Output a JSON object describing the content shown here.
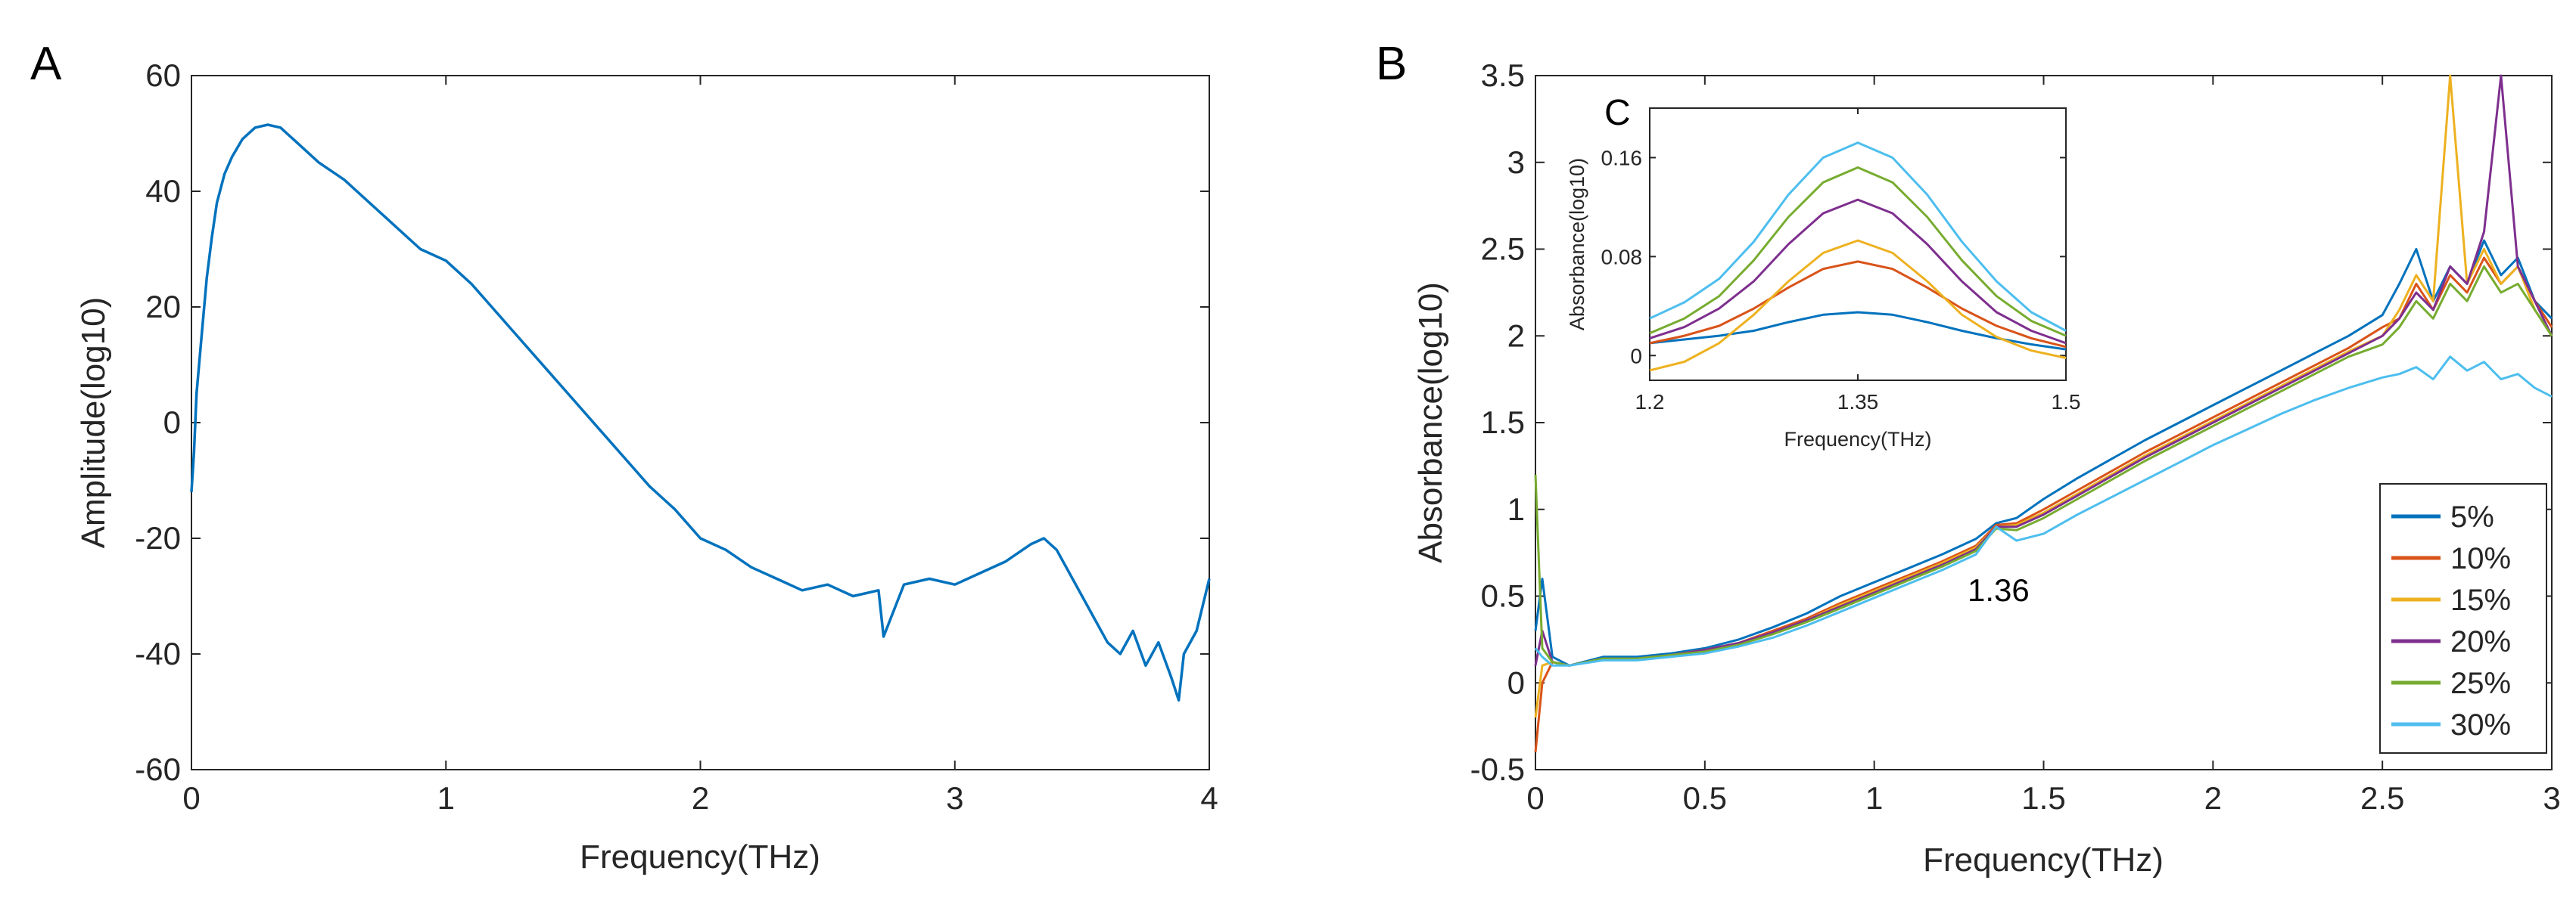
{
  "colors": {
    "s5": "#0072BD",
    "s10": "#D95319",
    "s15": "#EDB120",
    "s20": "#7E2F8E",
    "s25": "#77AC30",
    "s30": "#4DBEEE",
    "axis": "#262626"
  },
  "chart_data": [
    {
      "panel": "A",
      "type": "line",
      "title": "",
      "xlabel": "Frequency(THz)",
      "ylabel": "Amplitude(log10)",
      "xlim": [
        0,
        4
      ],
      "ylim": [
        -60,
        60
      ],
      "xticks": [
        0,
        1,
        2,
        3,
        4
      ],
      "xtick_labels": [
        "0",
        "1",
        "2",
        "3",
        "4"
      ],
      "yticks": [
        -60,
        -40,
        -20,
        0,
        20,
        40,
        60
      ],
      "ytick_labels": [
        "-60",
        "-40",
        "-20",
        "0",
        "20",
        "40",
        "60"
      ],
      "series": [
        {
          "name": "amplitude",
          "color": "#0072BD",
          "x": [
            0.0,
            0.01,
            0.02,
            0.04,
            0.06,
            0.08,
            0.1,
            0.13,
            0.16,
            0.2,
            0.25,
            0.3,
            0.35,
            0.4,
            0.5,
            0.6,
            0.7,
            0.8,
            0.9,
            1.0,
            1.1,
            1.2,
            1.3,
            1.4,
            1.5,
            1.6,
            1.7,
            1.8,
            1.9,
            2.0,
            2.1,
            2.2,
            2.3,
            2.4,
            2.5,
            2.6,
            2.7,
            2.72,
            2.8,
            2.9,
            3.0,
            3.1,
            3.2,
            3.3,
            3.35,
            3.4,
            3.45,
            3.5,
            3.55,
            3.6,
            3.65,
            3.7,
            3.75,
            3.8,
            3.85,
            3.88,
            3.9,
            3.95,
            4.0
          ],
          "y": [
            -12,
            -5,
            5,
            15,
            25,
            32,
            38,
            43,
            46,
            49,
            51,
            51.5,
            51,
            49,
            45,
            42,
            38,
            34,
            30,
            28,
            24,
            19,
            14,
            9,
            4,
            -1,
            -6,
            -11,
            -15,
            -20,
            -22,
            -25,
            -27,
            -29,
            -28,
            -30,
            -29,
            -37,
            -28,
            -27,
            -28,
            -26,
            -24,
            -21,
            -20,
            -22,
            -26,
            -30,
            -34,
            -38,
            -40,
            -36,
            -42,
            -38,
            -44,
            -48,
            -40,
            -36,
            -27
          ]
        }
      ]
    },
    {
      "panel": "B",
      "type": "line",
      "title": "",
      "xlabel": "Frequency(THz)",
      "ylabel": "Absorbance(log10)",
      "xlim": [
        0,
        3
      ],
      "ylim": [
        -0.5,
        3.5
      ],
      "xticks": [
        0,
        0.5,
        1,
        1.5,
        2,
        2.5,
        3
      ],
      "xtick_labels": [
        "0",
        "0.5",
        "1",
        "1.5",
        "2",
        "2.5",
        "3"
      ],
      "yticks": [
        -0.5,
        0,
        0.5,
        1,
        1.5,
        2,
        2.5,
        3,
        3.5
      ],
      "ytick_labels": [
        "-0.5",
        "0",
        "0.5",
        "1",
        "1.5",
        "2",
        "2.5",
        "3",
        "3.5"
      ],
      "legend_position": "bottom-right",
      "annotations": [
        {
          "text": "1.36",
          "x": 1.36,
          "y": 0.58
        }
      ],
      "x": [
        0.0,
        0.02,
        0.05,
        0.1,
        0.2,
        0.3,
        0.4,
        0.5,
        0.6,
        0.7,
        0.8,
        0.9,
        1.0,
        1.1,
        1.2,
        1.3,
        1.36,
        1.42,
        1.5,
        1.6,
        1.7,
        1.8,
        1.9,
        2.0,
        2.1,
        2.2,
        2.3,
        2.4,
        2.5,
        2.55,
        2.6,
        2.65,
        2.7,
        2.75,
        2.8,
        2.85,
        2.9,
        2.95,
        3.0
      ],
      "series": [
        {
          "name": "5%",
          "color": "#0072BD",
          "values": [
            0.3,
            0.6,
            0.15,
            0.1,
            0.15,
            0.15,
            0.17,
            0.2,
            0.25,
            0.32,
            0.4,
            0.5,
            0.58,
            0.66,
            0.74,
            0.83,
            0.92,
            0.95,
            1.06,
            1.18,
            1.29,
            1.4,
            1.5,
            1.6,
            1.7,
            1.8,
            1.9,
            2.0,
            2.12,
            2.3,
            2.5,
            2.2,
            2.4,
            2.3,
            2.55,
            2.35,
            2.45,
            2.2,
            2.1
          ]
        },
        {
          "name": "10%",
          "color": "#D95319",
          "values": [
            -0.4,
            0.0,
            0.12,
            0.1,
            0.14,
            0.14,
            0.16,
            0.19,
            0.23,
            0.3,
            0.37,
            0.46,
            0.54,
            0.62,
            0.7,
            0.79,
            0.91,
            0.92,
            1.0,
            1.11,
            1.22,
            1.33,
            1.43,
            1.53,
            1.63,
            1.73,
            1.83,
            1.93,
            2.05,
            2.1,
            2.3,
            2.15,
            2.35,
            2.25,
            2.45,
            2.3,
            2.4,
            2.2,
            2.05
          ]
        },
        {
          "name": "15%",
          "color": "#EDB120",
          "values": [
            -0.2,
            0.1,
            0.12,
            0.1,
            0.14,
            0.14,
            0.16,
            0.19,
            0.23,
            0.29,
            0.36,
            0.45,
            0.53,
            0.61,
            0.69,
            0.78,
            0.9,
            0.91,
            0.98,
            1.09,
            1.2,
            1.31,
            1.41,
            1.51,
            1.61,
            1.71,
            1.81,
            1.91,
            2.0,
            2.15,
            2.35,
            2.2,
            3.5,
            2.3,
            2.5,
            2.3,
            2.4,
            2.15,
            2.0
          ]
        },
        {
          "name": "20%",
          "color": "#7E2F8E",
          "values": [
            0.1,
            0.3,
            0.12,
            0.1,
            0.14,
            0.14,
            0.16,
            0.19,
            0.23,
            0.29,
            0.36,
            0.44,
            0.52,
            0.6,
            0.68,
            0.77,
            0.9,
            0.9,
            0.97,
            1.08,
            1.19,
            1.3,
            1.4,
            1.5,
            1.6,
            1.7,
            1.8,
            1.9,
            2.0,
            2.1,
            2.25,
            2.15,
            2.4,
            2.3,
            2.6,
            3.5,
            2.4,
            2.2,
            2.0
          ]
        },
        {
          "name": "25%",
          "color": "#77AC30",
          "values": [
            1.2,
            0.2,
            0.12,
            0.1,
            0.14,
            0.14,
            0.16,
            0.18,
            0.22,
            0.28,
            0.35,
            0.43,
            0.51,
            0.59,
            0.67,
            0.76,
            0.89,
            0.88,
            0.95,
            1.06,
            1.17,
            1.28,
            1.38,
            1.48,
            1.58,
            1.68,
            1.78,
            1.88,
            1.95,
            2.05,
            2.2,
            2.1,
            2.3,
            2.2,
            2.4,
            2.25,
            2.3,
            2.15,
            2.0
          ]
        },
        {
          "name": "30%",
          "color": "#4DBEEE",
          "values": [
            0.2,
            0.15,
            0.1,
            0.1,
            0.13,
            0.13,
            0.15,
            0.17,
            0.21,
            0.26,
            0.33,
            0.41,
            0.49,
            0.57,
            0.65,
            0.74,
            0.9,
            0.82,
            0.86,
            0.97,
            1.07,
            1.17,
            1.27,
            1.37,
            1.46,
            1.55,
            1.63,
            1.7,
            1.76,
            1.78,
            1.82,
            1.75,
            1.88,
            1.8,
            1.85,
            1.75,
            1.78,
            1.7,
            1.65
          ]
        }
      ]
    },
    {
      "panel": "C",
      "type": "line",
      "title": "",
      "xlabel": "Frequency(THz)",
      "ylabel": "Absorbance(log10)",
      "xlim": [
        1.2,
        1.5
      ],
      "ylim": [
        -0.02,
        0.2
      ],
      "xticks": [
        1.2,
        1.35,
        1.5
      ],
      "xtick_labels": [
        "1.2",
        "1.35",
        "1.5"
      ],
      "yticks": [
        0,
        0.08,
        0.16
      ],
      "ytick_labels": [
        "0",
        "0.08",
        "0.16"
      ],
      "x": [
        1.2,
        1.225,
        1.25,
        1.275,
        1.3,
        1.325,
        1.35,
        1.375,
        1.4,
        1.425,
        1.45,
        1.475,
        1.5
      ],
      "series": [
        {
          "name": "5%",
          "color": "#0072BD",
          "values": [
            0.01,
            0.013,
            0.016,
            0.02,
            0.027,
            0.033,
            0.035,
            0.033,
            0.027,
            0.02,
            0.014,
            0.009,
            0.005
          ]
        },
        {
          "name": "10%",
          "color": "#D95319",
          "values": [
            0.01,
            0.016,
            0.024,
            0.038,
            0.055,
            0.07,
            0.076,
            0.07,
            0.055,
            0.038,
            0.024,
            0.014,
            0.007
          ]
        },
        {
          "name": "15%",
          "color": "#EDB120",
          "values": [
            -0.012,
            -0.005,
            0.01,
            0.033,
            0.06,
            0.083,
            0.093,
            0.083,
            0.06,
            0.033,
            0.015,
            0.004,
            -0.002
          ]
        },
        {
          "name": "20%",
          "color": "#7E2F8E",
          "values": [
            0.014,
            0.023,
            0.038,
            0.06,
            0.09,
            0.115,
            0.126,
            0.115,
            0.09,
            0.06,
            0.035,
            0.02,
            0.01
          ]
        },
        {
          "name": "25%",
          "color": "#77AC30",
          "values": [
            0.018,
            0.03,
            0.048,
            0.077,
            0.112,
            0.14,
            0.152,
            0.14,
            0.112,
            0.077,
            0.048,
            0.028,
            0.016
          ]
        },
        {
          "name": "30%",
          "color": "#4DBEEE",
          "values": [
            0.03,
            0.043,
            0.062,
            0.092,
            0.13,
            0.16,
            0.172,
            0.16,
            0.13,
            0.092,
            0.06,
            0.035,
            0.02
          ]
        }
      ]
    }
  ]
}
